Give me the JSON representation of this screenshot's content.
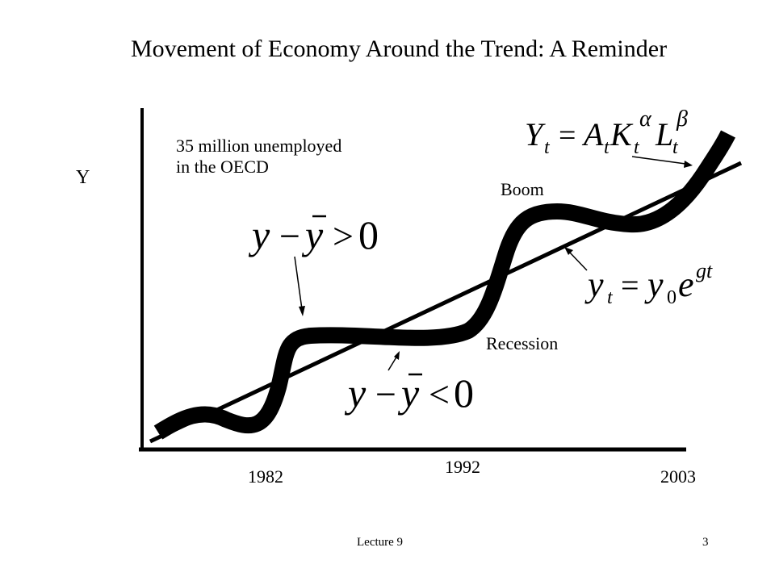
{
  "slide": {
    "title": "Movement of Economy Around the Trend: A Reminder",
    "footer_left": "Lecture 9",
    "page_number": "3"
  },
  "diagram": {
    "y_axis_label": "Y",
    "note_line1": "35 million unemployed",
    "note_line2": "in the OECD",
    "boom_label": "Boom",
    "recession_label": "Recession",
    "year_labels": [
      "1982",
      "1992",
      "2003"
    ],
    "eq_positive_gap": {
      "lhs": "y",
      "minus": "−",
      "ybar": "y",
      "rel": ">",
      "rhs": "0"
    },
    "eq_negative_gap": {
      "lhs": "y",
      "minus": "−",
      "ybar": "y",
      "rel": "<",
      "rhs": "0"
    },
    "eq_production": {
      "Y": "Y",
      "t": "t",
      "eq": "=",
      "A": "A",
      "K": "K",
      "alpha": "α",
      "L": "L",
      "beta": "β"
    },
    "eq_trend": {
      "y": "y",
      "t": "t",
      "eq": "=",
      "zero": "0",
      "e": "e",
      "gt": "gt"
    }
  }
}
